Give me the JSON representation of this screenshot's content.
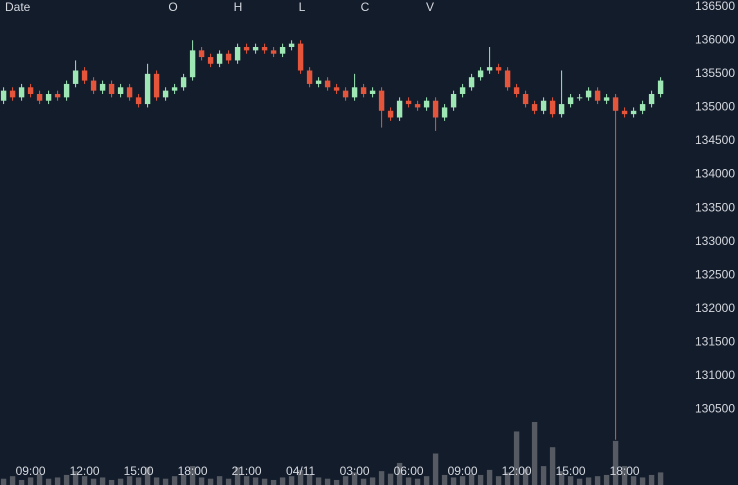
{
  "chart_data": {
    "type": "candlestick",
    "header": [
      "Date",
      "O",
      "H",
      "L",
      "C",
      "V"
    ],
    "x": [
      7.5,
      8,
      8.5,
      9,
      9.5,
      10,
      10.5,
      11,
      11.5,
      12,
      12.5,
      13,
      13.5,
      14,
      14.5,
      15,
      15.5,
      16,
      16.5,
      17,
      17.5,
      18,
      18.5,
      19,
      19.5,
      20,
      20.5,
      21,
      21.5,
      22,
      22.5,
      23,
      23.5,
      24,
      24.5,
      25,
      25.5,
      26,
      26.5,
      27,
      27.5,
      28,
      28.5,
      29,
      29.5,
      30,
      30.5,
      31,
      31.5,
      32,
      32.5,
      33,
      33.5,
      34,
      34.5,
      35,
      35.5,
      36,
      36.5,
      37,
      37.5,
      38,
      38.5,
      39,
      39.5,
      40,
      40.5,
      41,
      41.5,
      42,
      42.5,
      43,
      43.5,
      44
    ],
    "open": [
      135100,
      135250,
      135150,
      135300,
      135200,
      135100,
      135200,
      135150,
      135350,
      135550,
      135400,
      135250,
      135350,
      135200,
      135300,
      135150,
      135050,
      135500,
      135150,
      135250,
      135300,
      135450,
      135850,
      135750,
      135650,
      135800,
      135700,
      135900,
      135850,
      135900,
      135850,
      135800,
      135900,
      135950,
      135550,
      135350,
      135400,
      135300,
      135250,
      135150,
      135300,
      135200,
      135250,
      134950,
      134850,
      135100,
      135050,
      135000,
      135100,
      134850,
      135000,
      135200,
      135300,
      135450,
      135550,
      135600,
      135550,
      135300,
      135200,
      135050,
      134950,
      135100,
      134900,
      135050,
      135150,
      135150,
      135250,
      135100,
      135150,
      134950,
      134900,
      134950,
      135050,
      135200
    ],
    "high": [
      135300,
      135300,
      135350,
      135350,
      135250,
      135250,
      135250,
      135400,
      135700,
      135600,
      135450,
      135400,
      135400,
      135350,
      135350,
      135200,
      135650,
      135550,
      135300,
      135350,
      135500,
      136000,
      135900,
      135800,
      135850,
      135850,
      135950,
      135950,
      135950,
      135950,
      135900,
      135950,
      136000,
      136000,
      135600,
      135450,
      135450,
      135350,
      135300,
      135500,
      135350,
      135300,
      135300,
      135000,
      135150,
      135150,
      135100,
      135150,
      135150,
      135050,
      135250,
      135350,
      135500,
      135600,
      135900,
      135650,
      135600,
      135350,
      135250,
      135100,
      135150,
      135150,
      135550,
      135200,
      135200,
      135300,
      135300,
      135200,
      135200,
      135000,
      135000,
      135100,
      135250,
      135450
    ],
    "low": [
      135050,
      135100,
      135100,
      135150,
      135050,
      135050,
      135100,
      135100,
      135300,
      135350,
      135200,
      135200,
      135150,
      135150,
      135100,
      135000,
      135000,
      135100,
      135100,
      135200,
      135250,
      135400,
      135700,
      135600,
      135600,
      135650,
      135650,
      135800,
      135800,
      135800,
      135750,
      135750,
      135850,
      135500,
      135300,
      135300,
      135250,
      135200,
      135100,
      135100,
      135150,
      135150,
      134700,
      134800,
      134800,
      135000,
      134950,
      134950,
      134650,
      134800,
      134950,
      135150,
      135250,
      135400,
      135500,
      135500,
      135250,
      135150,
      135000,
      134900,
      134900,
      134850,
      134850,
      135000,
      135100,
      135100,
      135050,
      135050,
      130050,
      134850,
      134850,
      134900,
      135000,
      135150
    ],
    "close": [
      135250,
      135150,
      135300,
      135200,
      135100,
      135200,
      135150,
      135350,
      135550,
      135400,
      135250,
      135350,
      135200,
      135300,
      135150,
      135050,
      135500,
      135150,
      135250,
      135300,
      135450,
      135850,
      135750,
      135650,
      135800,
      135700,
      135900,
      135850,
      135900,
      135850,
      135800,
      135900,
      135950,
      135550,
      135350,
      135400,
      135300,
      135250,
      135150,
      135300,
      135200,
      135250,
      134950,
      134850,
      135100,
      135050,
      135000,
      135100,
      134850,
      135000,
      135200,
      135300,
      135450,
      135550,
      135600,
      135550,
      135300,
      135200,
      135050,
      134950,
      135100,
      134900,
      135050,
      135150,
      135150,
      135250,
      135100,
      135150,
      134950,
      134900,
      134950,
      135050,
      135200,
      135400
    ],
    "volume": [
      10,
      14,
      8,
      12,
      18,
      10,
      12,
      16,
      22,
      14,
      10,
      12,
      8,
      10,
      14,
      12,
      28,
      12,
      10,
      14,
      16,
      30,
      12,
      10,
      14,
      10,
      28,
      14,
      12,
      10,
      8,
      12,
      14,
      24,
      16,
      12,
      10,
      8,
      14,
      20,
      10,
      12,
      22,
      18,
      35,
      12,
      10,
      14,
      50,
      16,
      12,
      14,
      18,
      16,
      24,
      14,
      20,
      85,
      26,
      100,
      30,
      60,
      22,
      14,
      10,
      12,
      14,
      16,
      70,
      30,
      14,
      12,
      16,
      20
    ],
    "xlim": [
      7.3,
      45.3
    ],
    "ylim": [
      129600,
      136600
    ],
    "volume_lim": [
      0,
      100
    ],
    "yticks": [
      130500,
      131000,
      131500,
      132000,
      132500,
      133000,
      133500,
      134000,
      134500,
      135000,
      135500,
      136000,
      136500
    ],
    "xticks": [
      {
        "value": 9,
        "label": "09:00"
      },
      {
        "value": 12,
        "label": "12:00"
      },
      {
        "value": 15,
        "label": "15:00"
      },
      {
        "value": 18,
        "label": "18:00"
      },
      {
        "value": 21,
        "label": "21:00"
      },
      {
        "value": 24,
        "label": "04/11"
      },
      {
        "value": 27,
        "label": "03:00"
      },
      {
        "value": 30,
        "label": "06:00"
      },
      {
        "value": 33,
        "label": "09:00"
      },
      {
        "value": 36,
        "label": "12:00"
      },
      {
        "value": 39,
        "label": "15:00"
      },
      {
        "value": 42,
        "label": "18:00"
      }
    ],
    "grid": false,
    "up_color": "#9ee6b4",
    "down_color": "#e5553b",
    "volume_color": "#555a63"
  }
}
